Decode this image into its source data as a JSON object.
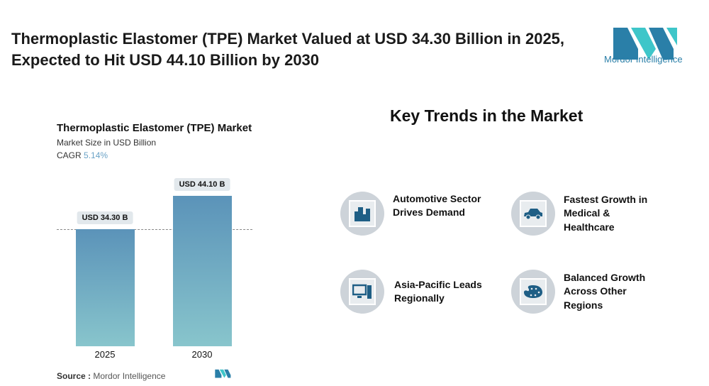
{
  "title": "Thermoplastic Elastomer (TPE) Market Valued at USD 34.30 Billion in 2025, Expected to Hit USD 44.10 Billion by 2030",
  "logo": {
    "text": "Mordor Intelligence",
    "colors": [
      "#2a7fa8",
      "#3ec6c9"
    ]
  },
  "chart_data": {
    "type": "bar",
    "title": "Thermoplastic Elastomer (TPE) Market",
    "subtitle": "Market Size in USD Billion",
    "cagr_label": "CAGR",
    "cagr_value": "5.14%",
    "categories": [
      "2025",
      "2030"
    ],
    "values": [
      34.3,
      44.1
    ],
    "data_labels": [
      "USD 34.30 B",
      "USD 44.10 B"
    ],
    "ylim": [
      0,
      44.1
    ],
    "grid": false,
    "colors": {
      "top": "#5b93b9",
      "bottom": "#88c5cc"
    }
  },
  "source": {
    "label": "Source :",
    "value": "Mordor Intelligence"
  },
  "trends": {
    "heading": "Key Trends in the Market",
    "items": [
      {
        "label": "Automotive Sector Drives Demand",
        "icon": "buildings-icon"
      },
      {
        "label": "Fastest Growth in Medical & Healthcare",
        "icon": "car-icon"
      },
      {
        "label": "Asia-Pacific Leads Regionally",
        "icon": "computer-icon"
      },
      {
        "label": "Balanced Growth Across Other Regions",
        "icon": "palette-icon"
      }
    ]
  }
}
